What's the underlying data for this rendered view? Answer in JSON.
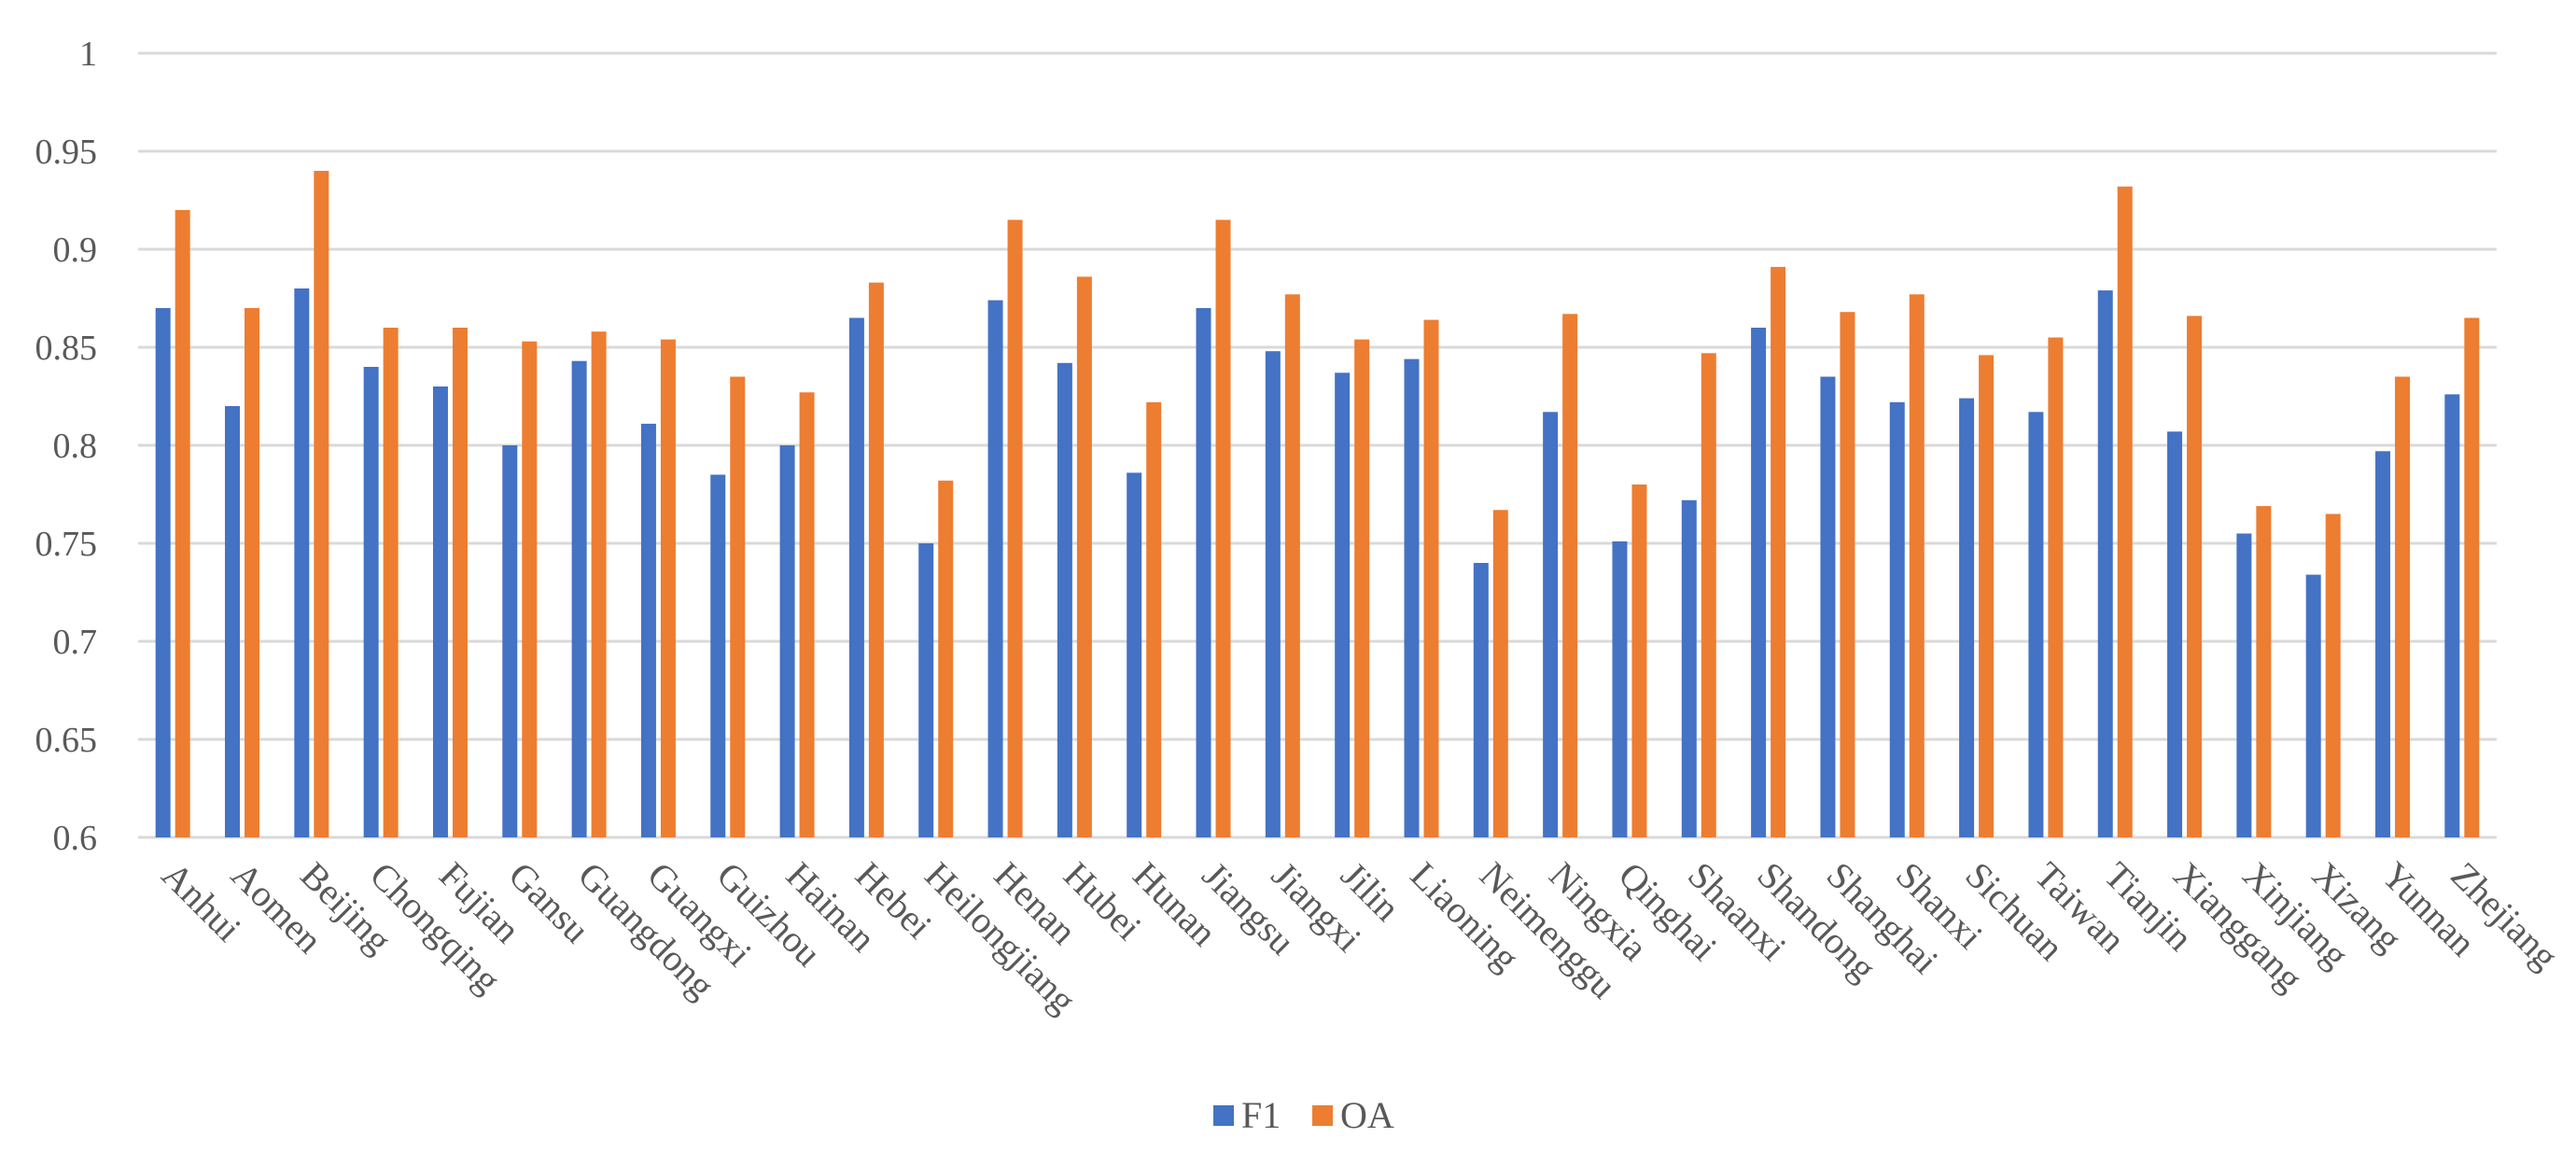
{
  "chart_data": {
    "type": "bar",
    "title": "",
    "xlabel": "",
    "ylabel": "",
    "ylim": [
      0.6,
      1.0
    ],
    "yticks": [
      0.6,
      0.65,
      0.7,
      0.75,
      0.8,
      0.85,
      0.9,
      0.95,
      1.0
    ],
    "ytick_labels": [
      "0.6",
      "0.65",
      "0.7",
      "0.75",
      "0.8",
      "0.85",
      "0.9",
      "0.95",
      "1"
    ],
    "grid": true,
    "legend_position": "bottom",
    "categories": [
      "Anhui",
      "Aomen",
      "Beijing",
      "Chongqing",
      "Fujian",
      "Gansu",
      "Guangdong",
      "Guangxi",
      "Guizhou",
      "Hainan",
      "Hebei",
      "Heilongjiang",
      "Henan",
      "Hubei",
      "Hunan",
      "Jiangsu",
      "Jiangxi",
      "Jilin",
      "Liaoning",
      "Neimenggu",
      "Ningxia",
      "Qinghai",
      "Shaanxi",
      "Shandong",
      "Shanghai",
      "Shanxi",
      "Sichuan",
      "Taiwan",
      "Tianjin",
      "Xianggang",
      "Xinjiang",
      "Xizang",
      "Yunnan",
      "Zhejiang"
    ],
    "series": [
      {
        "name": "F1",
        "color": "#4472c4",
        "values": [
          0.87,
          0.82,
          0.88,
          0.84,
          0.83,
          0.8,
          0.843,
          0.811,
          0.785,
          0.8,
          0.865,
          0.75,
          0.874,
          0.842,
          0.786,
          0.87,
          0.848,
          0.837,
          0.844,
          0.74,
          0.817,
          0.751,
          0.772,
          0.86,
          0.835,
          0.822,
          0.824,
          0.817,
          0.879,
          0.807,
          0.755,
          0.734,
          0.797,
          0.826
        ]
      },
      {
        "name": "OA",
        "color": "#ed7d31",
        "values": [
          0.92,
          0.87,
          0.94,
          0.86,
          0.86,
          0.853,
          0.858,
          0.854,
          0.835,
          0.827,
          0.883,
          0.782,
          0.915,
          0.886,
          0.822,
          0.915,
          0.877,
          0.854,
          0.864,
          0.767,
          0.867,
          0.78,
          0.847,
          0.891,
          0.868,
          0.877,
          0.846,
          0.855,
          0.932,
          0.866,
          0.769,
          0.765,
          0.835,
          0.865
        ]
      }
    ]
  }
}
